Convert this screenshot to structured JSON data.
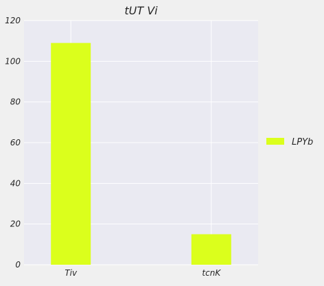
{
  "chart_data": {
    "type": "bar",
    "title": "tUT Vi",
    "xlabel": "",
    "ylabel": "",
    "categories": [
      "Tiv",
      "tcnK"
    ],
    "series": [
      {
        "name": "LPYb",
        "values": [
          109,
          15
        ]
      }
    ],
    "ylim": [
      0,
      120
    ],
    "yticks": [
      0,
      20,
      40,
      60,
      80,
      100,
      120
    ],
    "grid": true,
    "legend_position": "right",
    "colors": {
      "bar": "#dbff1c",
      "plot_background": "#eaeaf2",
      "figure_background": "#f0f0f0",
      "grid": "#ffffff"
    }
  }
}
